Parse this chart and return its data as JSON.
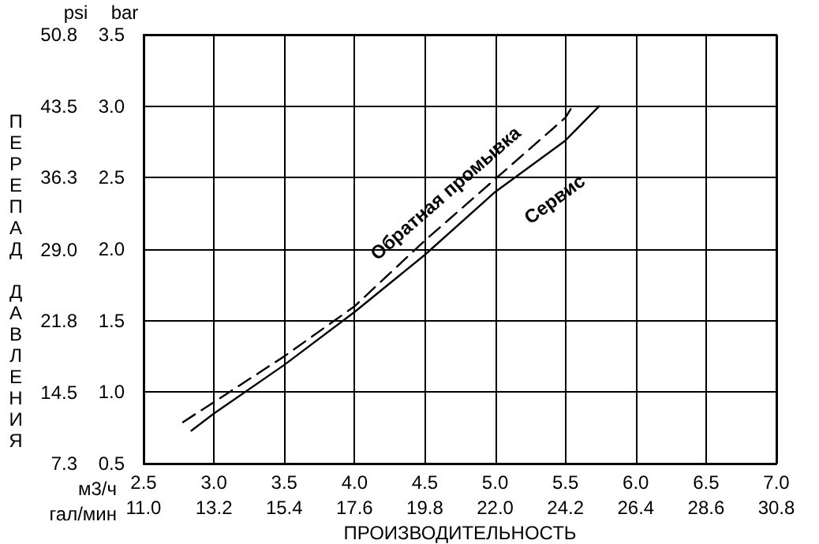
{
  "chart_data": {
    "type": "line",
    "xlabel": "ПРОИЗВОДИТЕЛЬНОСТЬ",
    "ylabel": "ПЕРЕПАД ДАВЛЕНИЯ",
    "annotations": [
      "psi",
      "bar",
      "м3/ч",
      "гал/мин"
    ],
    "xlim": [
      2.5,
      7.0
    ],
    "xticks": [
      2.5,
      {
        "value": 3,
        "label": "3.0"
      },
      3.5,
      {
        "value": 4,
        "label": "4.0"
      },
      4.5,
      {
        "value": 5,
        "label": "5.0"
      },
      5.5,
      {
        "value": 6,
        "label": "6.0"
      },
      6.5,
      {
        "value": 7,
        "label": "7.0"
      }
    ],
    "x2lim": [
      11.0,
      30.8
    ],
    "x2ticks": [
      {
        "value": 11,
        "label": "11.0"
      },
      13.2,
      15.4,
      17.6,
      19.8,
      {
        "value": 22,
        "label": "22.0"
      },
      24.2,
      26.4,
      28.6,
      30.8
    ],
    "ylim": [
      0.5,
      3.5
    ],
    "yticks": [
      0.5,
      {
        "value": 1,
        "label": "1.0"
      },
      1.5,
      {
        "value": 2,
        "label": "2.0"
      },
      2.5,
      {
        "value": 3,
        "label": "3.0"
      },
      3.5
    ],
    "y2lim": [
      7.3,
      50.8
    ],
    "y2ticks": [
      7.3,
      14.5,
      21.8,
      {
        "value": 29,
        "label": "29.0"
      },
      36.3,
      43.5,
      50.8
    ],
    "grid": true,
    "marker": "none",
    "series": [
      {
        "name": "Обратная промывка",
        "color": "#000000",
        "line_style": "dashed",
        "x": [
          2.78,
          3.0,
          3.5,
          4.0,
          4.5,
          5.0,
          5.5,
          5.55
        ],
        "values": [
          0.79,
          0.93,
          1.25,
          1.6,
          2.06,
          2.49,
          2.92,
          3.0
        ]
      },
      {
        "name": "Сервис",
        "color": "#000000",
        "line_style": "solid",
        "x": [
          2.84,
          3.0,
          3.5,
          4.0,
          4.5,
          5.0,
          5.5,
          5.74
        ],
        "values": [
          0.73,
          0.85,
          1.19,
          1.56,
          1.96,
          2.4,
          2.76,
          3.0
        ]
      }
    ]
  }
}
